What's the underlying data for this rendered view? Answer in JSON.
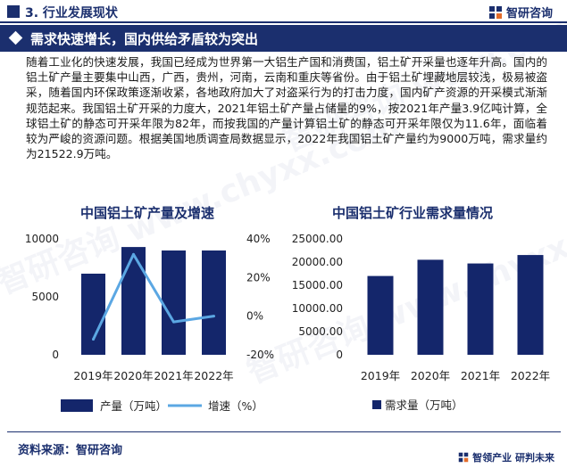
{
  "header": {
    "section_title": "3. 行业发展现状",
    "brand_name": "智研咨询",
    "logo_icon": "brand-logo-icon"
  },
  "banner": {
    "title": "需求快速增长，国内供给矛盾较为突出"
  },
  "body_text": "随着工业化的快速发展，我国已经成为世界第一大铝生产国和消费国，铝土矿开采量也逐年升高。国内的铝土矿产量主要集中山西，广西，贵州，河南，云南和重庆等省份。由于铝土矿埋藏地层较浅，极易被盗采，随着国内环保政策逐渐收紧，各地政府加大了对盗采行为的打击力度，国内矿产资源的开采模式渐渐规范起来。我国铝土矿开采的力度大，2021年铝土矿产量占储量的9%，按2021年产量3.9亿吨计算，全球铝土矿的静态可开采年限为82年，而按我国的产量计算铝土矿的静态可开采年限仅为11.6年，面临着较为严峻的资源问题。根据美国地质调查局数据显示，2022年我国铝土矿产量约为9000万吨，需求量约为21522.9万吨。",
  "footer": {
    "source": "资料来源：智研咨询",
    "brand_slogan": "智领产业 研判未来"
  },
  "watermark_text": "智研咨询 www.chyxx.com",
  "colors": {
    "navy": "#1b2f6e",
    "bar": "#14266b",
    "line": "#5ba7e3"
  },
  "chart_data": [
    {
      "type": "bar",
      "title": "中国铝土矿产量及增速",
      "categories": [
        "2019年",
        "2020年",
        "2021年",
        "2022年"
      ],
      "series": [
        {
          "name": "产量（万吨）",
          "type": "bar",
          "axis": "left",
          "values": [
            7000,
            9300,
            9000,
            9000
          ]
        },
        {
          "name": "增速（%）",
          "type": "line",
          "axis": "right",
          "values": [
            -12,
            32,
            -3,
            0
          ]
        }
      ],
      "y_left": {
        "min": 0,
        "max": 10000,
        "ticks": [
          0,
          5000,
          10000
        ],
        "tick_labels": [
          "0",
          "5000",
          "10000"
        ]
      },
      "y_right": {
        "min": -20,
        "max": 40,
        "ticks": [
          -20,
          0,
          20,
          40
        ],
        "tick_labels": [
          "-20%",
          "0%",
          "20%",
          "40%"
        ]
      },
      "legend": [
        "产量（万吨）",
        "增速（%）"
      ],
      "legend_position": "bottom",
      "grid": false
    },
    {
      "type": "bar",
      "title": "中国铝土矿行业需求量情况",
      "categories": [
        "2019年",
        "2020年",
        "2021年",
        "2022年"
      ],
      "series": [
        {
          "name": "需求量（万吨）",
          "values": [
            17000,
            20500,
            19700,
            21522.9
          ]
        }
      ],
      "y_left": {
        "min": 0,
        "max": 25000,
        "ticks": [
          0,
          5000,
          10000,
          15000,
          20000,
          25000
        ],
        "tick_labels": [
          "0",
          "5000.00",
          "10000.00",
          "15000.00",
          "20000.00",
          "25000.00"
        ]
      },
      "legend": [
        "需求量（万吨）"
      ],
      "legend_position": "bottom",
      "grid": false
    }
  ]
}
